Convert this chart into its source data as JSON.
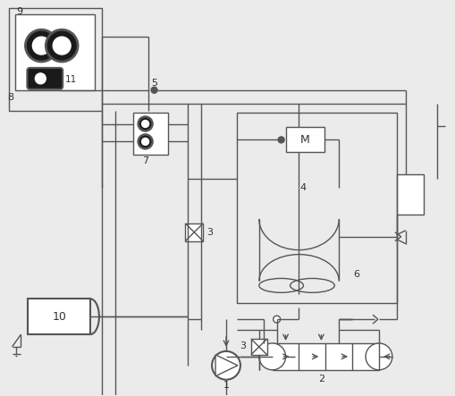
{
  "bg_color": "#ebebeb",
  "line_color": "#555555",
  "lw": 1.0,
  "lw2": 1.5,
  "figsize": [
    5.1,
    4.43
  ],
  "dpi": 100
}
